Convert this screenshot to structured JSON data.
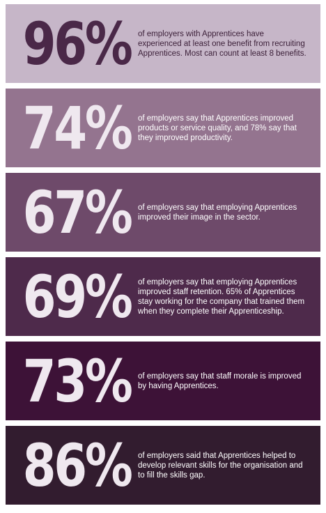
{
  "stats": [
    {
      "value": "96%",
      "text": "of employers with Apprentices have experienced at least one benefit from recruiting Apprentices. Most can count at least 8 benefits.",
      "bg": "#c6b6c8",
      "value_color": "#4a2848",
      "text_color": "#3b1f38"
    },
    {
      "value": "74%",
      "text": "of employers say that Apprentices improved products or service quality, and 78% say that they improved productivity.",
      "bg": "#94748f",
      "value_color": "#efe8ef",
      "text_color": "#ffffff"
    },
    {
      "value": "67%",
      "text": "of employers say that employing Apprentices improved their image in the sector.",
      "bg": "#6e4a6a",
      "value_color": "#efe8ef",
      "text_color": "#ffffff"
    },
    {
      "value": "69%",
      "text": "of employers say that employing Apprentices improved staff retention. 65% of Apprentices stay working for the company that trained them when they complete their Apprenticeship.",
      "bg": "#4e2a4b",
      "value_color": "#efe8ef",
      "text_color": "#ffffff"
    },
    {
      "value": "73%",
      "text": "of employers say that staff morale is improved by having Apprentices.",
      "bg": "#3d1237",
      "value_color": "#efe8ef",
      "text_color": "#ffffff"
    },
    {
      "value": "86%",
      "text": "of employers said that Apprentices helped to develop relevant skills for the organisation and to fill the skills gap.",
      "bg": "#321c2f",
      "value_color": "#efe8ef",
      "text_color": "#ffffff"
    }
  ]
}
